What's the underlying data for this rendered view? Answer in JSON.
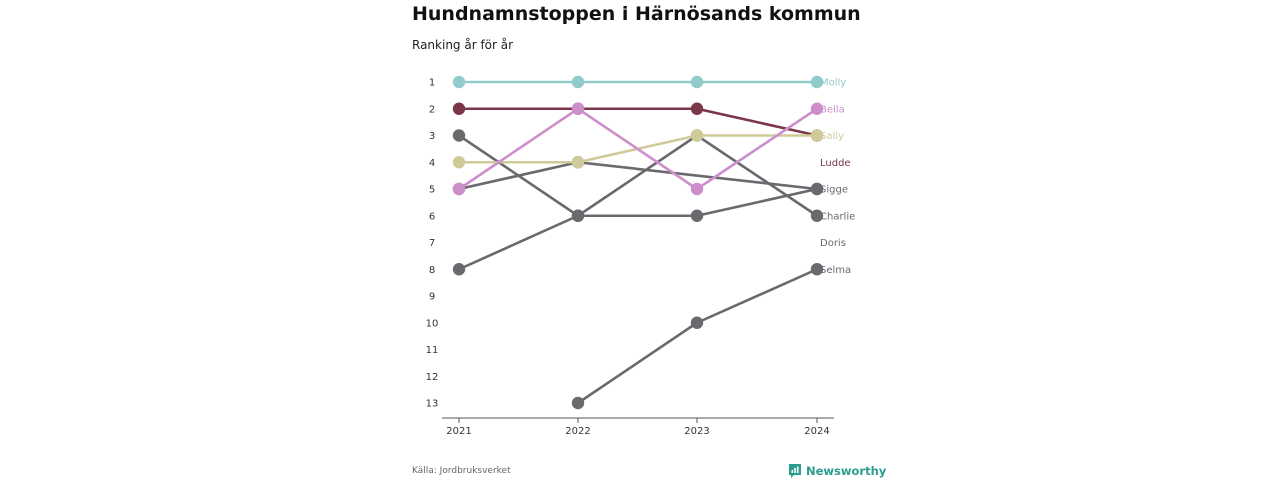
{
  "title": "Hundnamnstoppen i Härnösands kommun",
  "subtitle": "Ranking år för år",
  "source": "Källa: Jordbruksverket",
  "brand": {
    "name": "Newsworthy",
    "icon": "chart-bubble-icon",
    "color": "#2a9d8f"
  },
  "chart_data": {
    "type": "line",
    "subtype": "bump",
    "x": [
      "2021",
      "2022",
      "2023",
      "2024"
    ],
    "y_ticks": [
      "1",
      "2",
      "3",
      "4",
      "5",
      "6",
      "7",
      "8",
      "9",
      "10",
      "11",
      "12",
      "13"
    ],
    "ylim": [
      1,
      13
    ],
    "y_inverted": true,
    "grid": false,
    "series": [
      {
        "name": "Molly",
        "color": "#91cbcb",
        "values": [
          1,
          1,
          1,
          1
        ]
      },
      {
        "name": "Bella",
        "color": "#cc8fcc",
        "values": [
          5,
          2,
          5,
          2
        ]
      },
      {
        "name": "Sally",
        "color": "#cfcb99",
        "values": [
          4,
          4,
          3,
          3
        ]
      },
      {
        "name": "Ludde",
        "color": "#7b3648",
        "values": [
          2,
          2,
          2,
          3
        ]
      },
      {
        "name": "Sigge",
        "color": "#69696e",
        "values": [
          5,
          4,
          null,
          5
        ]
      },
      {
        "name": "Charlie",
        "color": "#69696e",
        "values": [
          3,
          6,
          3,
          6
        ]
      },
      {
        "name": "Doris",
        "color": "#69696e",
        "values": [
          8,
          6,
          6,
          5
        ]
      },
      {
        "name": "Selma",
        "color": "#69696e",
        "values": [
          null,
          13,
          10,
          8
        ]
      }
    ],
    "end_labels": [
      {
        "name": "Molly",
        "rank": 1,
        "color": "#91cbcb"
      },
      {
        "name": "Bella",
        "rank": 2,
        "color": "#cc8fcc"
      },
      {
        "name": "Sally",
        "rank": 3,
        "color": "#cfcb99"
      },
      {
        "name": "Ludde",
        "rank": 4,
        "color": "#7b3648"
      },
      {
        "name": "Sigge",
        "rank": 5,
        "color": "#69696e"
      },
      {
        "name": "Charlie",
        "rank": 6,
        "color": "#69696e"
      },
      {
        "name": "Doris",
        "rank": 7,
        "color": "#69696e"
      },
      {
        "name": "Selma",
        "rank": 8,
        "color": "#69696e"
      }
    ]
  }
}
